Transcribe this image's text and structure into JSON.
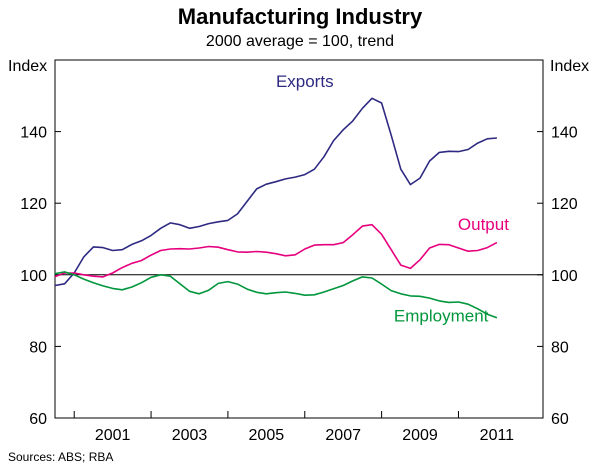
{
  "chart_data": {
    "type": "line",
    "title": "Manufacturing Industry",
    "subtitle": "2000 average = 100, trend",
    "ylabel_left": "Index",
    "ylabel_right": "Index",
    "source": "Sources: ABS; RBA",
    "ylim": [
      60,
      160
    ],
    "yticks": [
      60,
      80,
      100,
      120,
      140
    ],
    "xlim": [
      1999.5,
      2012.2
    ],
    "xticks": [
      2000,
      2002,
      2004,
      2006,
      2008,
      2010
    ],
    "xtick_labels": [
      "2001",
      "2003",
      "2005",
      "2007",
      "2009",
      "2011"
    ],
    "reference_line": 100,
    "grid": false,
    "series": [
      {
        "name": "Exports",
        "color": "#2e2a82",
        "x": [
          1999.5,
          1999.75,
          2000.0,
          2000.25,
          2000.5,
          2000.75,
          2001.0,
          2001.25,
          2001.5,
          2001.75,
          2002.0,
          2002.25,
          2002.5,
          2002.75,
          2003.0,
          2003.25,
          2003.5,
          2003.75,
          2004.0,
          2004.25,
          2004.5,
          2004.75,
          2005.0,
          2005.25,
          2005.5,
          2005.75,
          2006.0,
          2006.25,
          2006.5,
          2006.75,
          2007.0,
          2007.25,
          2007.5,
          2007.75,
          2008.0,
          2008.25,
          2008.5,
          2008.75,
          2009.0,
          2009.25,
          2009.5,
          2009.75,
          2010.0,
          2010.25,
          2010.5,
          2010.75,
          2011.0
        ],
        "values": [
          97,
          97.5,
          100.5,
          105,
          107.8,
          107.6,
          106.8,
          107,
          108.5,
          109.5,
          111,
          113,
          114.5,
          114,
          113,
          113.5,
          114.3,
          114.8,
          115.2,
          117,
          120.5,
          124,
          125.3,
          126,
          126.8,
          127.3,
          128,
          129.5,
          133,
          137.5,
          140.5,
          143,
          146.5,
          149.3,
          148,
          139,
          129.5,
          125.2,
          127,
          131.8,
          134.2,
          134.5,
          134.4,
          135,
          136.8,
          138,
          138.2
        ]
      },
      {
        "name": "Output",
        "color": "#e6007e",
        "x": [
          1999.5,
          1999.75,
          2000.0,
          2000.25,
          2000.5,
          2000.75,
          2001.0,
          2001.25,
          2001.5,
          2001.75,
          2002.0,
          2002.25,
          2002.5,
          2002.75,
          2003.0,
          2003.25,
          2003.5,
          2003.75,
          2004.0,
          2004.25,
          2004.5,
          2004.75,
          2005.0,
          2005.25,
          2005.5,
          2005.75,
          2006.0,
          2006.25,
          2006.5,
          2006.75,
          2007.0,
          2007.25,
          2007.5,
          2007.75,
          2008.0,
          2008.25,
          2008.5,
          2008.75,
          2009.0,
          2009.25,
          2009.5,
          2009.75,
          2010.0,
          2010.25,
          2010.5,
          2010.75,
          2011.0
        ],
        "values": [
          99.5,
          100.5,
          100.5,
          100,
          99.6,
          99.4,
          100.5,
          102,
          103.2,
          104,
          105.5,
          106.8,
          107.2,
          107.3,
          107.2,
          107.5,
          107.9,
          107.7,
          107,
          106.4,
          106.3,
          106.5,
          106.3,
          105.9,
          105.3,
          105.6,
          107.2,
          108.3,
          108.4,
          108.4,
          109,
          111.2,
          113.6,
          114,
          111.3,
          107,
          102.7,
          101.8,
          104.2,
          107.5,
          108.5,
          108.4,
          107.5,
          106.6,
          106.8,
          107.6,
          109
        ]
      },
      {
        "name": "Employment",
        "color": "#00963c",
        "x": [
          1999.5,
          1999.75,
          2000.0,
          2000.25,
          2000.5,
          2000.75,
          2001.0,
          2001.25,
          2001.5,
          2001.75,
          2002.0,
          2002.25,
          2002.5,
          2002.75,
          2003.0,
          2003.25,
          2003.5,
          2003.75,
          2004.0,
          2004.25,
          2004.5,
          2004.75,
          2005.0,
          2005.25,
          2005.5,
          2005.75,
          2006.0,
          2006.25,
          2006.5,
          2006.75,
          2007.0,
          2007.25,
          2007.5,
          2007.75,
          2008.0,
          2008.25,
          2008.5,
          2008.75,
          2009.0,
          2009.25,
          2009.5,
          2009.75,
          2010.0,
          2010.25,
          2010.5,
          2010.75,
          2011.0
        ],
        "values": [
          100.3,
          100.8,
          100,
          98.8,
          97.8,
          96.9,
          96.2,
          95.8,
          96.6,
          97.8,
          99.3,
          100,
          99.6,
          97.5,
          95.4,
          94.7,
          95.7,
          97.6,
          98.1,
          97.4,
          96,
          95.1,
          94.7,
          95,
          95.2,
          94.8,
          94.3,
          94.4,
          95.2,
          96.1,
          97,
          98.3,
          99.4,
          99.1,
          97.4,
          95.6,
          94.7,
          94.1,
          94,
          93.5,
          92.7,
          92.3,
          92.4,
          91.8,
          90.5,
          89,
          88
        ]
      }
    ],
    "annotations": [
      {
        "text": "Exports",
        "x": 2006.0,
        "y": 152.5,
        "color": "#2e2a82"
      },
      {
        "text": "Output",
        "x": 2010.65,
        "y": 112.5,
        "color": "#e6007e"
      },
      {
        "text": "Employment",
        "x": 2009.55,
        "y": 87.0,
        "color": "#00963c"
      }
    ]
  }
}
